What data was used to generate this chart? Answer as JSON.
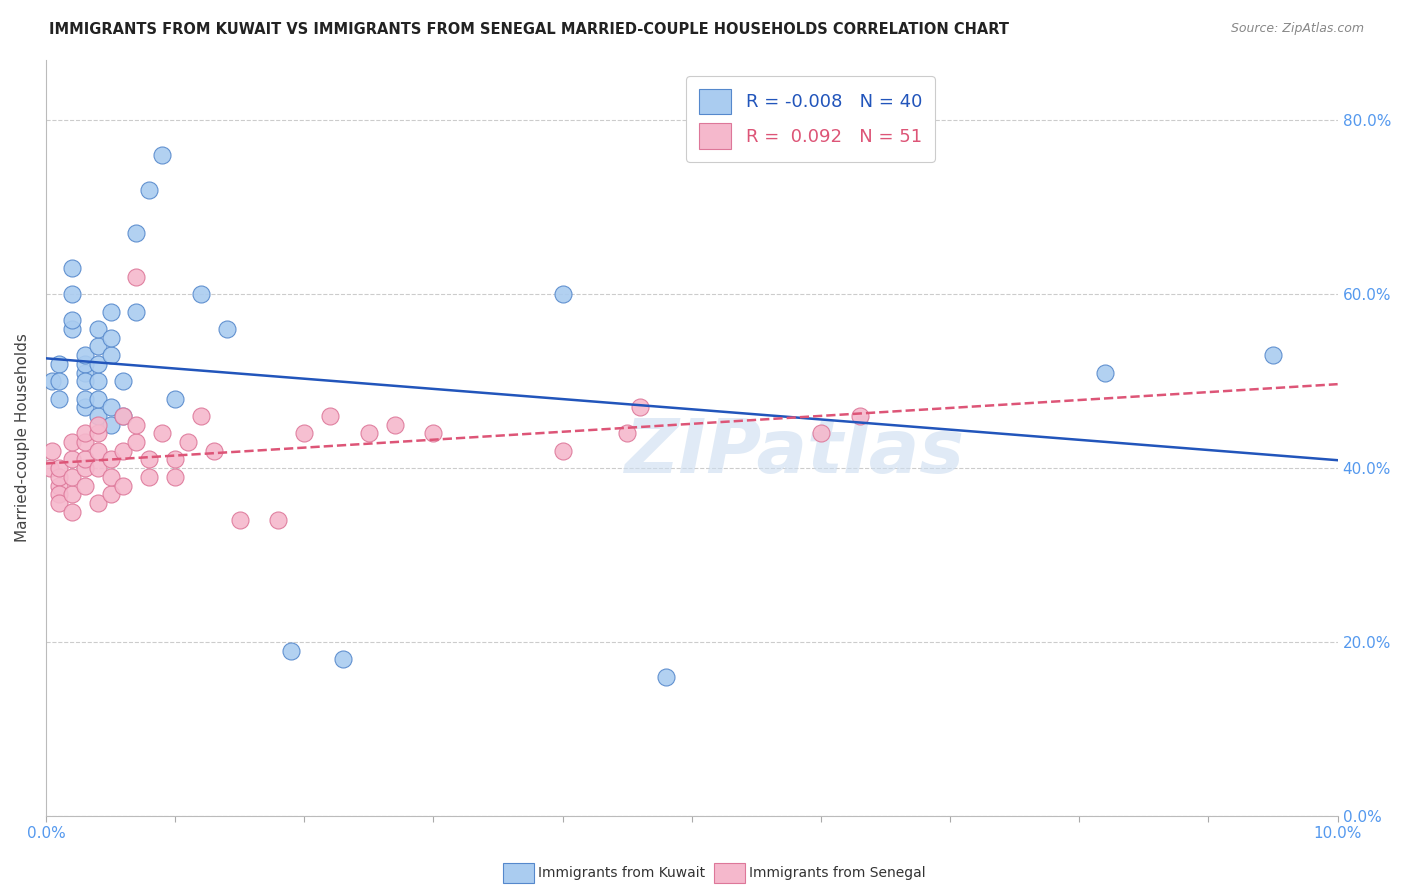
{
  "title": "IMMIGRANTS FROM KUWAIT VS IMMIGRANTS FROM SENEGAL MARRIED-COUPLE HOUSEHOLDS CORRELATION CHART",
  "source": "Source: ZipAtlas.com",
  "ylabel": "Married-couple Households",
  "kuwait_R": -0.008,
  "kuwait_N": 40,
  "senegal_R": 0.092,
  "senegal_N": 51,
  "kuwait_color": "#aaccf0",
  "senegal_color": "#f5b8cc",
  "kuwait_edge_color": "#5588cc",
  "senegal_edge_color": "#dd7799",
  "kuwait_line_color": "#2255bb",
  "senegal_line_color": "#dd5577",
  "watermark_color": "#ccddf0",
  "xlim": [
    0.0,
    0.1
  ],
  "ylim": [
    0.0,
    0.87
  ],
  "ytick_positions": [
    0.0,
    0.2,
    0.4,
    0.6,
    0.8
  ],
  "tick_color": "#5599ee",
  "background_color": "#ffffff",
  "kuwait_x": [
    0.0005,
    0.001,
    0.001,
    0.001,
    0.002,
    0.002,
    0.002,
    0.002,
    0.003,
    0.003,
    0.003,
    0.003,
    0.003,
    0.003,
    0.004,
    0.004,
    0.004,
    0.004,
    0.004,
    0.004,
    0.005,
    0.005,
    0.005,
    0.005,
    0.005,
    0.006,
    0.006,
    0.007,
    0.007,
    0.008,
    0.009,
    0.01,
    0.012,
    0.014,
    0.019,
    0.023,
    0.04,
    0.048,
    0.082,
    0.095
  ],
  "kuwait_y": [
    0.5,
    0.52,
    0.5,
    0.48,
    0.56,
    0.57,
    0.6,
    0.63,
    0.51,
    0.52,
    0.53,
    0.47,
    0.48,
    0.5,
    0.46,
    0.48,
    0.5,
    0.52,
    0.54,
    0.56,
    0.45,
    0.47,
    0.53,
    0.55,
    0.58,
    0.46,
    0.5,
    0.58,
    0.67,
    0.72,
    0.76,
    0.48,
    0.6,
    0.56,
    0.19,
    0.18,
    0.6,
    0.16,
    0.51,
    0.53
  ],
  "senegal_x": [
    0.0003,
    0.0005,
    0.001,
    0.001,
    0.001,
    0.001,
    0.001,
    0.002,
    0.002,
    0.002,
    0.002,
    0.002,
    0.003,
    0.003,
    0.003,
    0.003,
    0.003,
    0.004,
    0.004,
    0.004,
    0.004,
    0.004,
    0.005,
    0.005,
    0.005,
    0.006,
    0.006,
    0.006,
    0.007,
    0.007,
    0.007,
    0.008,
    0.008,
    0.009,
    0.01,
    0.01,
    0.011,
    0.012,
    0.013,
    0.015,
    0.018,
    0.02,
    0.022,
    0.025,
    0.027,
    0.03,
    0.04,
    0.045,
    0.046,
    0.06,
    0.063
  ],
  "senegal_y": [
    0.4,
    0.42,
    0.38,
    0.39,
    0.4,
    0.37,
    0.36,
    0.35,
    0.37,
    0.39,
    0.41,
    0.43,
    0.38,
    0.4,
    0.41,
    0.43,
    0.44,
    0.4,
    0.42,
    0.44,
    0.45,
    0.36,
    0.37,
    0.39,
    0.41,
    0.38,
    0.42,
    0.46,
    0.43,
    0.45,
    0.62,
    0.39,
    0.41,
    0.44,
    0.39,
    0.41,
    0.43,
    0.46,
    0.42,
    0.34,
    0.34,
    0.44,
    0.46,
    0.44,
    0.45,
    0.44,
    0.42,
    0.44,
    0.47,
    0.44,
    0.46
  ]
}
